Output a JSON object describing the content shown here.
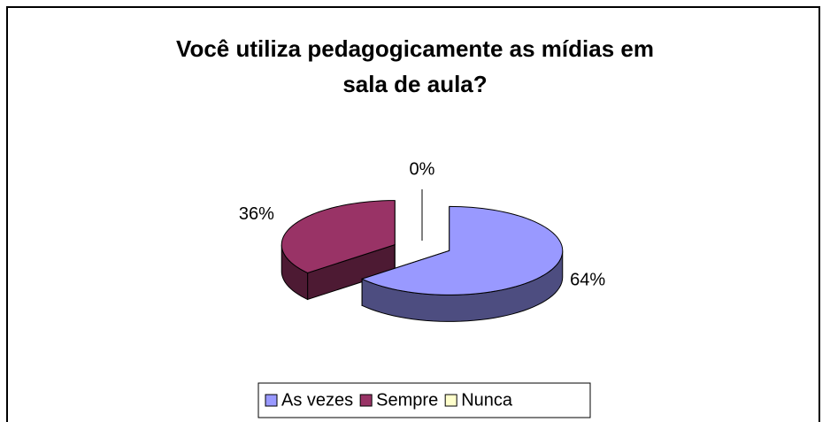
{
  "chart_data": {
    "type": "pie",
    "title": "Você utiliza pedagogicamente as mídias em sala de aula?",
    "categories": [
      "As vezes",
      "Sempre",
      "Nunca"
    ],
    "values": [
      64,
      36,
      0
    ],
    "value_labels": [
      "64%",
      "36%",
      "0%"
    ],
    "colors": [
      "#9999ff",
      "#993366",
      "#ffffcc"
    ],
    "three_d": true,
    "exploded": true,
    "legend": "bottom"
  }
}
